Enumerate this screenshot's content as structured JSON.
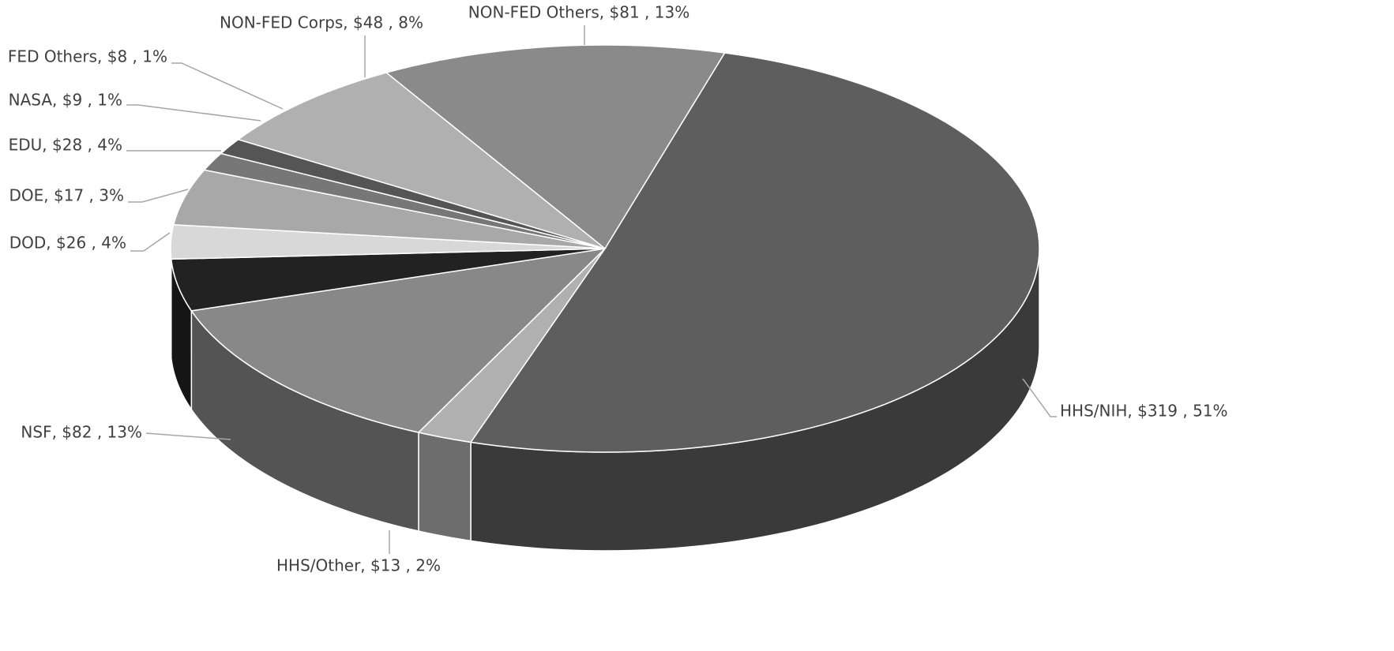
{
  "chart_data": {
    "type": "pie3d",
    "values": [
      319,
      13,
      82,
      26,
      17,
      28,
      9,
      8,
      48,
      81
    ],
    "value_labels": [
      "HHS/NIH, $319 , 51%",
      "HHS/Other, $13 , 2%",
      "NSF, $82 , 13%",
      "DOD, $26 , 4%",
      "DOE, $17 , 3%",
      "EDU, $28 , 4%",
      "NASA, $9 , 1%",
      "FED Others, $8 , 1%",
      "NON-FED Corps, $48 , 8%",
      "NON-FED Others, $81 , 13%"
    ],
    "colors": [
      "#5e5e5e",
      "#b0b0b0",
      "#888888",
      "#222222",
      "#d8d8d8",
      "#a8a8a8",
      "#777777",
      "#555555",
      "#b0b0b0",
      "#8a8a8a"
    ]
  }
}
